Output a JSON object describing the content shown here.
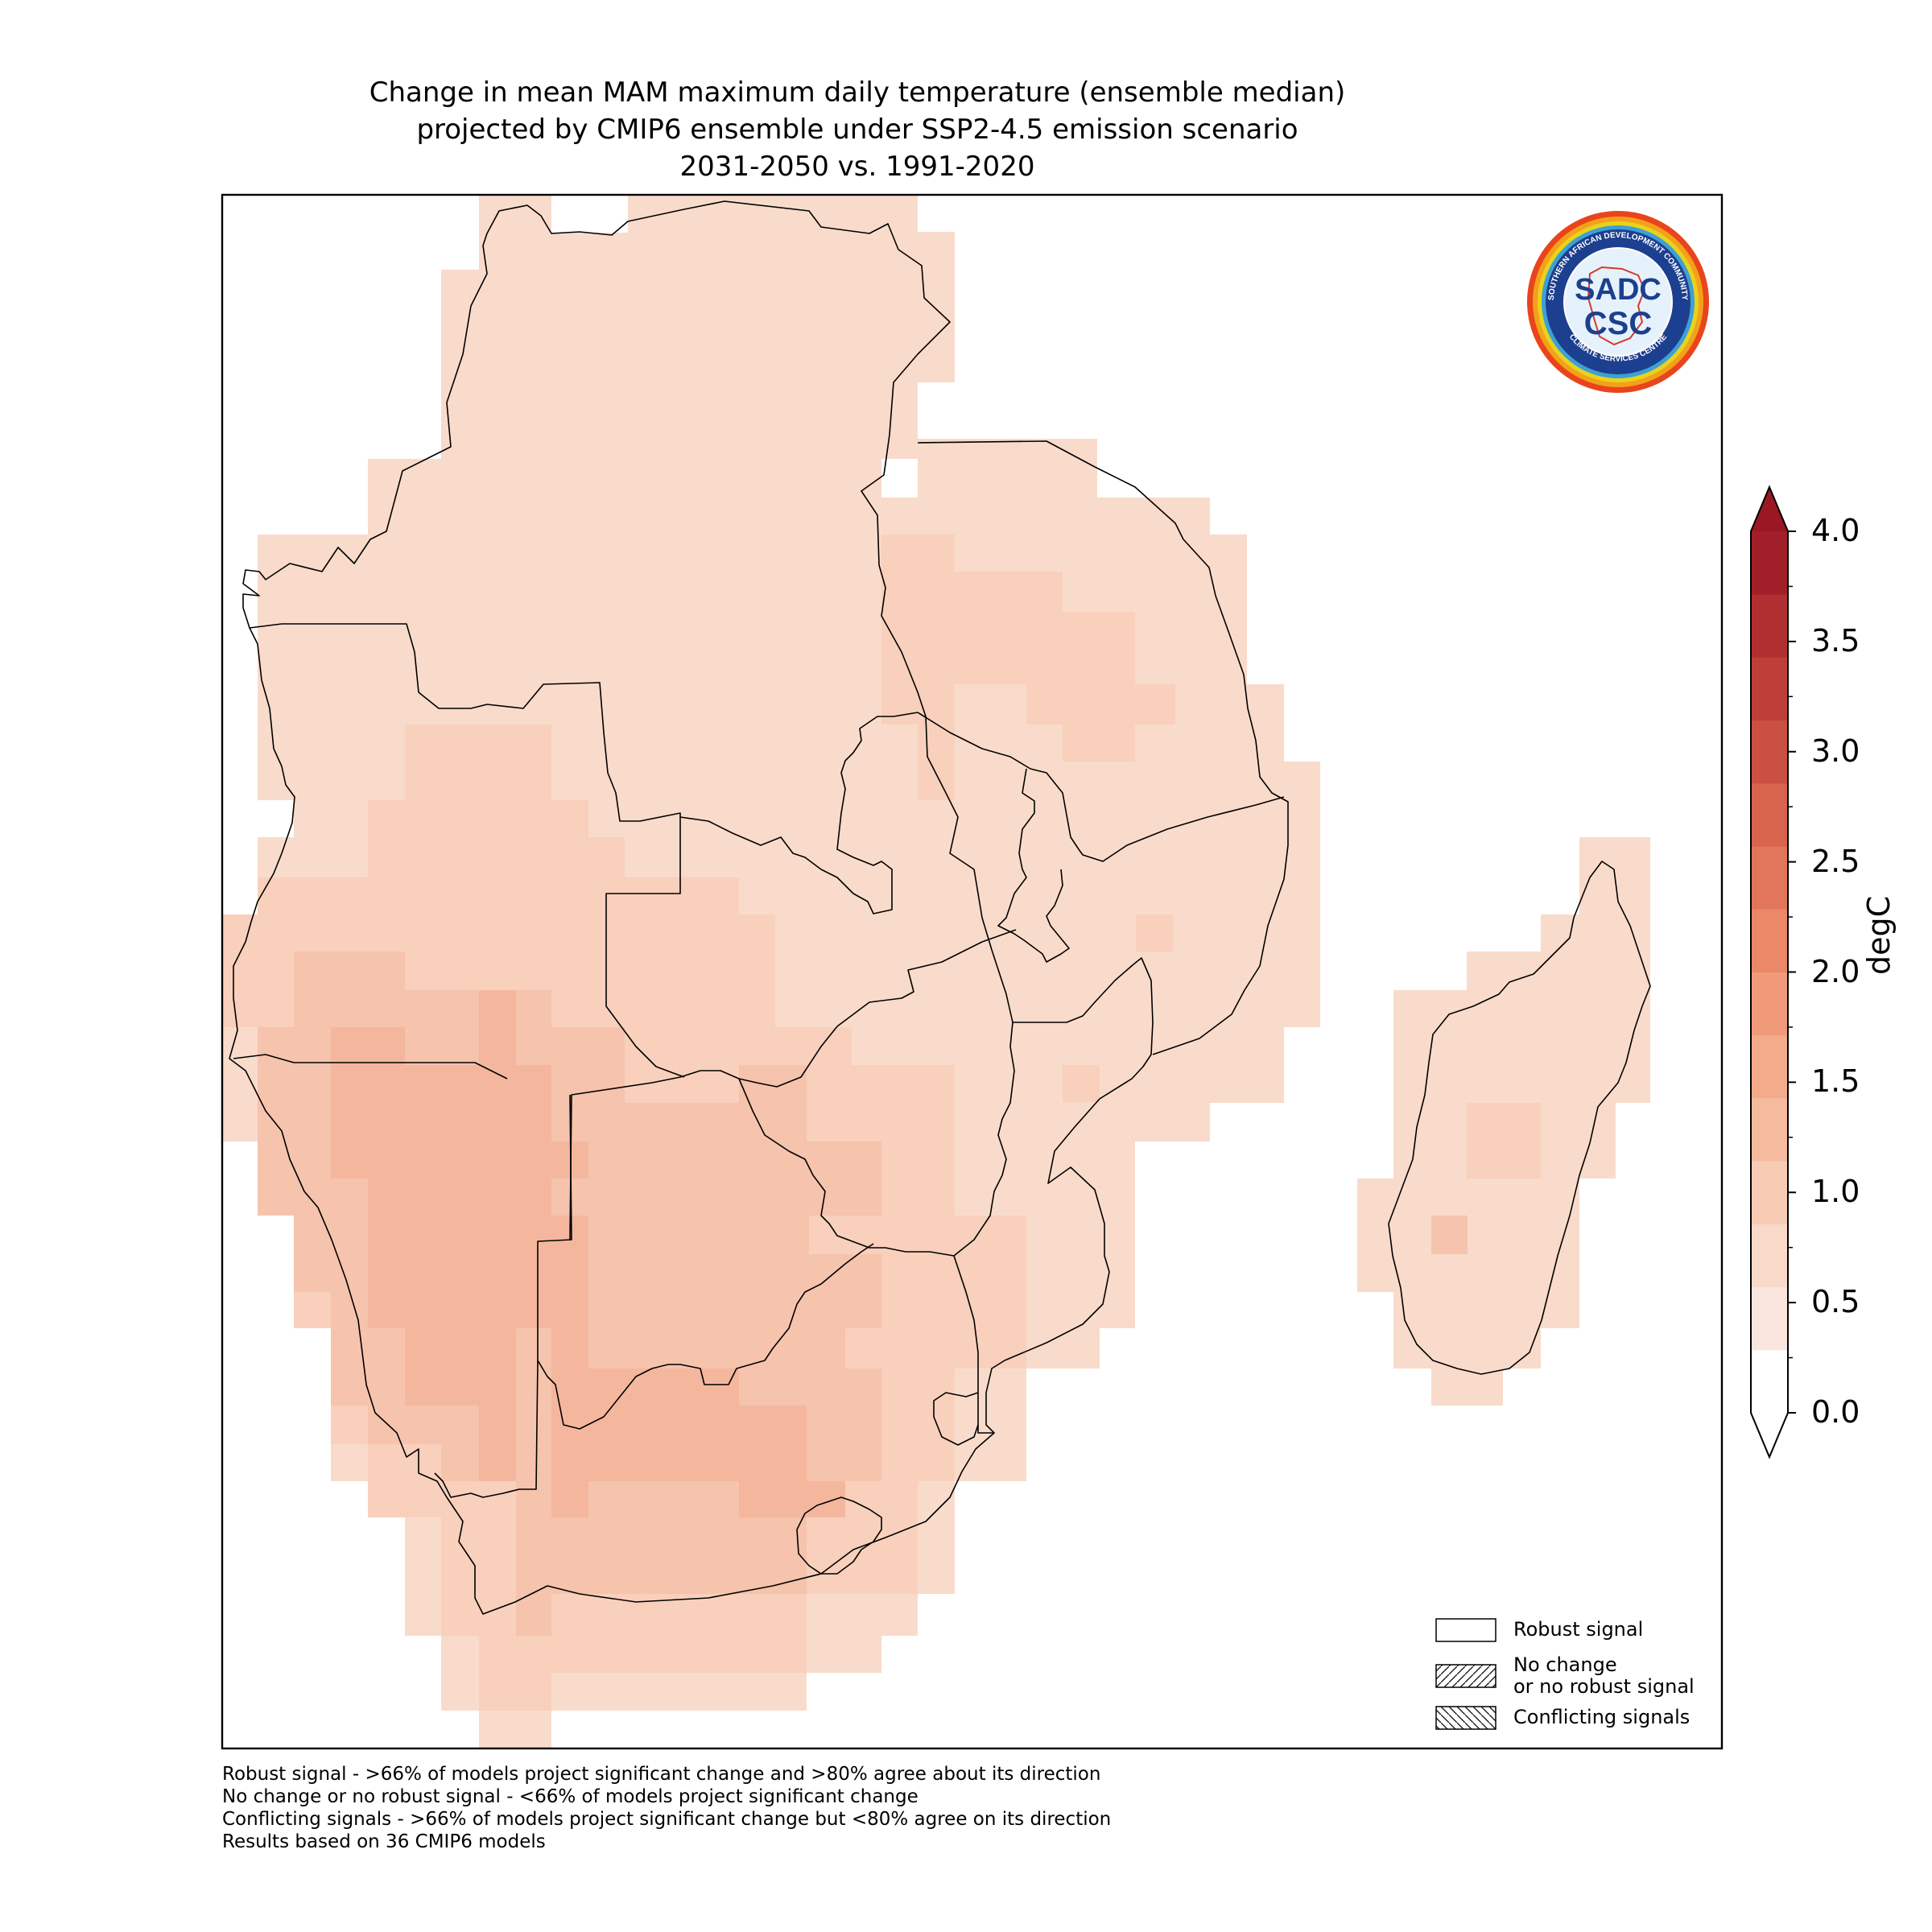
{
  "title": {
    "line1": "Change in mean MAM maximum daily temperature (ensemble median)",
    "line2": "projected by CMIP6 ensemble under SSP2-4.5 emission scenario",
    "line3": "2031-2050 vs. 1991-2020"
  },
  "logo": {
    "ring_text_top": "SOUTHERN AFRICAN DEVELOPMENT COMMUNITY",
    "ring_text_bottom": "CLIMATE SERVICES CENTRE",
    "mark_top": "SADC",
    "mark_bottom": "CSC"
  },
  "colorbar": {
    "label": "degC",
    "ticks": [
      "4.0",
      "3.5",
      "3.0",
      "2.5",
      "2.0",
      "1.5",
      "1.0",
      "0.5",
      "0.0"
    ],
    "min": 0.0,
    "max": 4.0,
    "extend": "both",
    "colors": [
      "#fae6de",
      "#f9d9c9",
      "#f8cbb4",
      "#f6bb9f",
      "#f4ab8b",
      "#f09a79",
      "#ea8868",
      "#e2765a",
      "#d8644e",
      "#cb5043",
      "#be3f39",
      "#b12f30",
      "#a01f28"
    ]
  },
  "legend": {
    "robust": "Robust signal",
    "no_change_line1": "No change",
    "no_change_line2": "or no robust signal",
    "conflicting": "Conflicting signals"
  },
  "notes": {
    "line1": "Robust signal - >66% of models project significant change and >80% agree about its direction",
    "line2": "No change or no robust signal - <66% of models project significant change",
    "line3": "Conflicting signals - >66% of models project significant change but <80% agree on its direction",
    "line4": "Results based on 36 CMIP6 models"
  },
  "map_data": {
    "region": "Southern Africa",
    "value_range_degC": [
      0.5,
      1.5
    ],
    "dominant_value_degC": "0.5-1.0",
    "highest_areas": "southern Namibia, southern Botswana, central South Africa",
    "signal": "Robust signal"
  }
}
